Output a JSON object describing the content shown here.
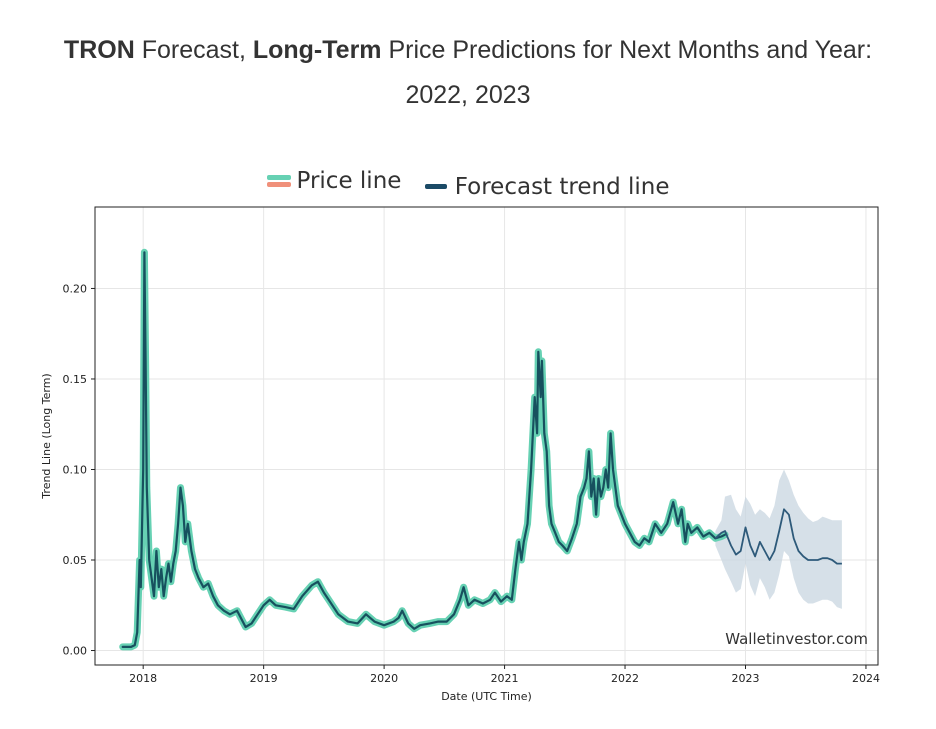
{
  "title": {
    "brand": "TRON",
    "part1": " Forecast, ",
    "emph": "Long-Term",
    "part2": " Price Predictions for Next Months and Year:",
    "line2": "2022, 2023"
  },
  "legend": {
    "price_label": "Price line",
    "forecast_label": "Forecast trend line"
  },
  "colors": {
    "price_band": "#66d1b3",
    "price_core": "#17505e",
    "forecast_line": "#2e5a7a",
    "forecast_band": "#c8d6e0",
    "legend_red": "#f0907a",
    "grid": "#e6e6e6"
  },
  "chart_data": {
    "type": "line",
    "title": "TRON Forecast, Long-Term Price Predictions for Next Months and Year: 2022, 2023",
    "xlabel": "Date (UTC Time)",
    "ylabel": "Trend Line (Long Term)",
    "xlim": [
      2017.6,
      2024.1
    ],
    "ylim": [
      -0.008,
      0.245
    ],
    "x_ticks": [
      2018,
      2019,
      2020,
      2021,
      2022,
      2023,
      2024
    ],
    "x_tick_labels": [
      "2018",
      "2019",
      "2020",
      "2021",
      "2022",
      "2023",
      "2024"
    ],
    "y_ticks": [
      0.0,
      0.05,
      0.1,
      0.15,
      0.2
    ],
    "y_tick_labels": [
      "0.00",
      "0.05",
      "0.10",
      "0.15",
      "0.20"
    ],
    "grid": true,
    "watermark": "Walletinvestor.com",
    "series": [
      {
        "name": "Price line",
        "x": [
          2017.83,
          2017.9,
          2017.93,
          2017.95,
          2017.96,
          2017.97,
          2017.98,
          2018.0,
          2018.01,
          2018.02,
          2018.03,
          2018.04,
          2018.05,
          2018.07,
          2018.09,
          2018.11,
          2018.13,
          2018.15,
          2018.17,
          2018.19,
          2018.21,
          2018.23,
          2018.25,
          2018.27,
          2018.29,
          2018.31,
          2018.33,
          2018.35,
          2018.37,
          2018.4,
          2018.43,
          2018.46,
          2018.5,
          2018.54,
          2018.58,
          2018.62,
          2018.67,
          2018.72,
          2018.78,
          2018.85,
          2018.9,
          2018.95,
          2019.0,
          2019.05,
          2019.1,
          2019.18,
          2019.25,
          2019.32,
          2019.4,
          2019.45,
          2019.5,
          2019.55,
          2019.62,
          2019.7,
          2019.78,
          2019.85,
          2019.92,
          2020.0,
          2020.08,
          2020.12,
          2020.15,
          2020.2,
          2020.25,
          2020.3,
          2020.38,
          2020.45,
          2020.52,
          2020.58,
          2020.63,
          2020.66,
          2020.7,
          2020.75,
          2020.82,
          2020.88,
          2020.92,
          2020.97,
          2021.02,
          2021.06,
          2021.09,
          2021.12,
          2021.14,
          2021.16,
          2021.19,
          2021.22,
          2021.25,
          2021.27,
          2021.28,
          2021.3,
          2021.31,
          2021.33,
          2021.35,
          2021.37,
          2021.39,
          2021.42,
          2021.45,
          2021.48,
          2021.52,
          2021.56,
          2021.6,
          2021.63,
          2021.66,
          2021.68,
          2021.7,
          2021.72,
          2021.74,
          2021.76,
          2021.78,
          2021.8,
          2021.82,
          2021.84,
          2021.86,
          2021.88,
          2021.9,
          2021.92,
          2021.94,
          2021.97,
          2022.0,
          2022.04,
          2022.08,
          2022.12,
          2022.16,
          2022.2,
          2022.25,
          2022.3,
          2022.35,
          2022.4,
          2022.44,
          2022.47,
          2022.5,
          2022.52,
          2022.55,
          2022.6,
          2022.65,
          2022.7,
          2022.75,
          2022.8,
          2022.83
        ],
        "values": [
          0.002,
          0.002,
          0.003,
          0.01,
          0.03,
          0.05,
          0.035,
          0.1,
          0.22,
          0.16,
          0.09,
          0.07,
          0.05,
          0.04,
          0.03,
          0.055,
          0.035,
          0.045,
          0.03,
          0.04,
          0.048,
          0.038,
          0.048,
          0.055,
          0.07,
          0.09,
          0.08,
          0.06,
          0.07,
          0.055,
          0.045,
          0.04,
          0.035,
          0.037,
          0.03,
          0.025,
          0.022,
          0.02,
          0.022,
          0.013,
          0.015,
          0.02,
          0.025,
          0.028,
          0.025,
          0.024,
          0.023,
          0.03,
          0.036,
          0.038,
          0.032,
          0.027,
          0.02,
          0.016,
          0.015,
          0.02,
          0.016,
          0.014,
          0.016,
          0.018,
          0.022,
          0.015,
          0.012,
          0.014,
          0.015,
          0.016,
          0.016,
          0.02,
          0.028,
          0.035,
          0.025,
          0.028,
          0.026,
          0.028,
          0.032,
          0.027,
          0.03,
          0.028,
          0.045,
          0.06,
          0.05,
          0.06,
          0.07,
          0.1,
          0.14,
          0.12,
          0.165,
          0.14,
          0.16,
          0.12,
          0.11,
          0.08,
          0.07,
          0.065,
          0.06,
          0.058,
          0.055,
          0.062,
          0.07,
          0.085,
          0.09,
          0.095,
          0.11,
          0.085,
          0.095,
          0.075,
          0.095,
          0.085,
          0.09,
          0.1,
          0.09,
          0.12,
          0.1,
          0.09,
          0.08,
          0.075,
          0.07,
          0.065,
          0.06,
          0.058,
          0.062,
          0.06,
          0.07,
          0.065,
          0.07,
          0.082,
          0.07,
          0.078,
          0.06,
          0.07,
          0.065,
          0.068,
          0.063,
          0.065,
          0.062,
          0.063,
          0.064
        ]
      },
      {
        "name": "Forecast trend line",
        "x": [
          2022.75,
          2022.8,
          2022.83,
          2022.88,
          2022.92,
          2022.96,
          2023.0,
          2023.04,
          2023.08,
          2023.12,
          2023.16,
          2023.2,
          2023.24,
          2023.28,
          2023.32,
          2023.36,
          2023.4,
          2023.44,
          2023.48,
          2023.52,
          2023.56,
          2023.6,
          2023.64,
          2023.68,
          2023.72,
          2023.76,
          2023.8
        ],
        "values": [
          0.062,
          0.065,
          0.066,
          0.058,
          0.053,
          0.055,
          0.068,
          0.058,
          0.052,
          0.06,
          0.055,
          0.05,
          0.055,
          0.066,
          0.078,
          0.075,
          0.062,
          0.055,
          0.052,
          0.05,
          0.05,
          0.05,
          0.051,
          0.051,
          0.05,
          0.048,
          0.048
        ],
        "upper": [
          0.066,
          0.072,
          0.085,
          0.086,
          0.078,
          0.074,
          0.085,
          0.081,
          0.075,
          0.078,
          0.076,
          0.073,
          0.08,
          0.094,
          0.1,
          0.094,
          0.086,
          0.08,
          0.076,
          0.073,
          0.071,
          0.072,
          0.074,
          0.073,
          0.072,
          0.072,
          0.072
        ],
        "lower": [
          0.058,
          0.05,
          0.045,
          0.038,
          0.032,
          0.034,
          0.048,
          0.036,
          0.03,
          0.04,
          0.035,
          0.028,
          0.032,
          0.042,
          0.055,
          0.052,
          0.04,
          0.032,
          0.028,
          0.026,
          0.026,
          0.027,
          0.028,
          0.028,
          0.027,
          0.024,
          0.023
        ]
      }
    ]
  }
}
